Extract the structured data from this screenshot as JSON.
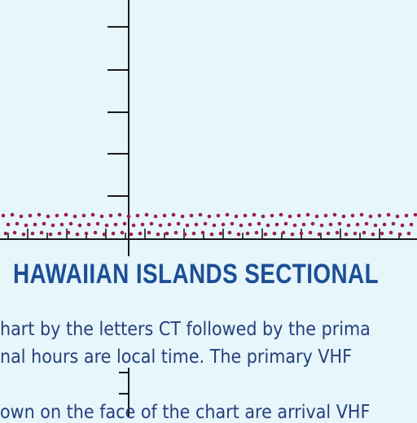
{
  "chart": {
    "title": "HAWAIIAN ISLANDS SECTIONAL",
    "notes": [
      "hart by the letters CT followed by the prima",
      "nal hours are local time.  The primary VHF",
      "own on the face of the chart are arrival VHF"
    ]
  },
  "colors": {
    "background": "#e6f6fa",
    "grid_line": "#1a1a1a",
    "boundary_dots": "#9b1e4f",
    "title_text": "#1d4f96",
    "body_text": "#253f7c"
  }
}
